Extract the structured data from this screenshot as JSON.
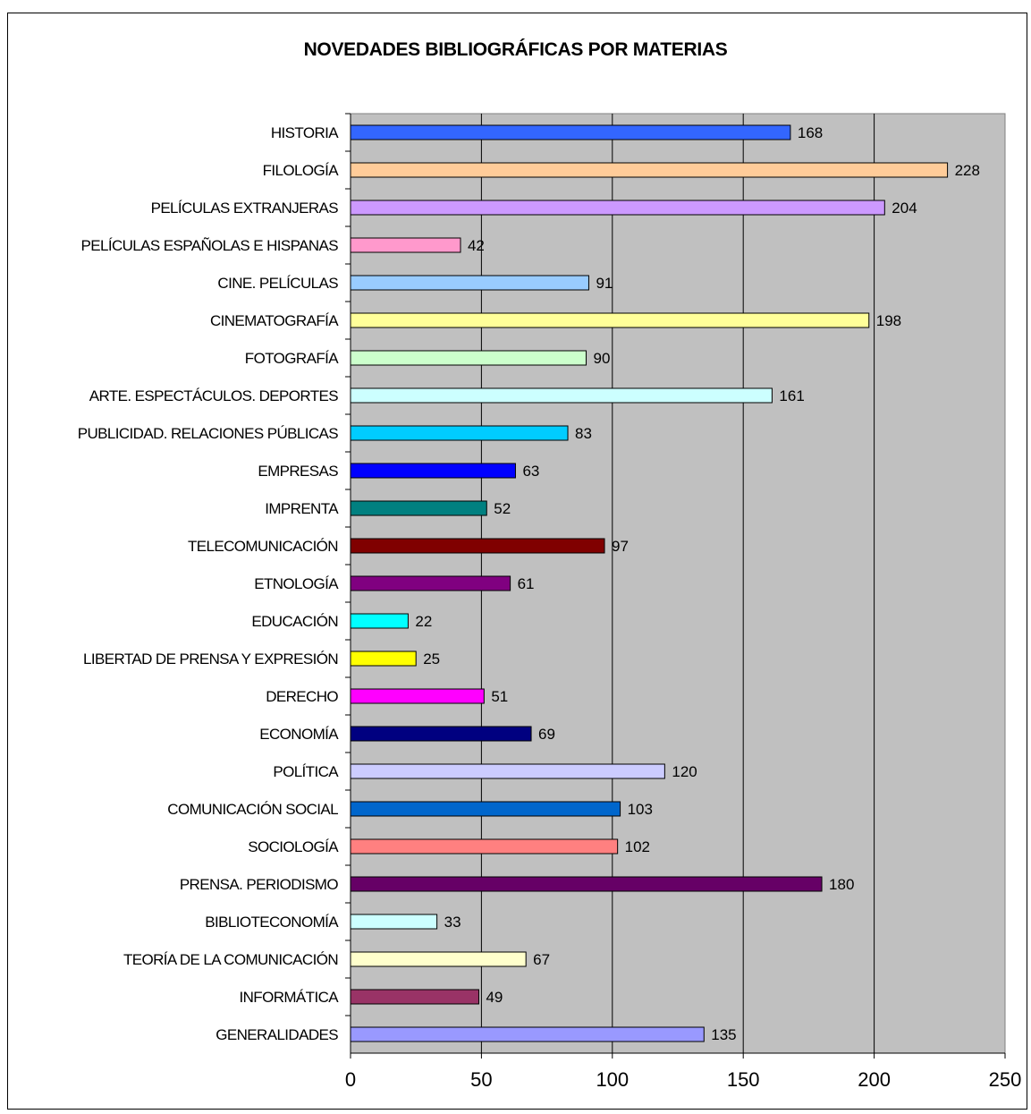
{
  "chart_data": {
    "type": "bar",
    "orientation": "horizontal",
    "title": "NOVEDADES BIBLIOGRÁFICAS POR MATERIAS",
    "xlabel": "",
    "ylabel": "",
    "xlim": [
      0,
      250
    ],
    "xticks": [
      0,
      50,
      100,
      150,
      200,
      250
    ],
    "grid": true,
    "legend": "none",
    "plot_background": "#C0C0C0",
    "categories": [
      "HISTORIA",
      "FILOLOGÍA",
      "PELÍCULAS EXTRANJERAS",
      "PELÍCULAS ESPAÑOLAS E HISPANAS",
      "CINE. PELÍCULAS",
      "CINEMATOGRAFÍA",
      "FOTOGRAFÍA",
      "ARTE. ESPECTÁCULOS. DEPORTES",
      "PUBLICIDAD. RELACIONES PÚBLICAS",
      "EMPRESAS",
      "IMPRENTA",
      "TELECOMUNICACIÓN",
      "ETNOLOGÍA",
      "EDUCACIÓN",
      "LIBERTAD DE PRENSA Y EXPRESIÓN",
      "DERECHO",
      "ECONOMÍA",
      "POLÍTICA",
      "COMUNICACIÓN SOCIAL",
      "SOCIOLOGÍA",
      "PRENSA. PERIODISMO",
      "BIBLIOTECONOMÍA",
      "TEORÍA DE LA COMUNICACIÓN",
      "INFORMÁTICA",
      "GENERALIDADES"
    ],
    "values": [
      168,
      228,
      204,
      42,
      91,
      198,
      90,
      161,
      83,
      63,
      52,
      97,
      61,
      22,
      25,
      51,
      69,
      120,
      103,
      102,
      180,
      33,
      67,
      49,
      135
    ],
    "colors": [
      "#3366FF",
      "#FFCC99",
      "#CC99FF",
      "#FF99CC",
      "#99CCFF",
      "#FFFF99",
      "#CCFFCC",
      "#CCFFFF",
      "#00CCFF",
      "#0000FF",
      "#008080",
      "#800000",
      "#800080",
      "#00FFFF",
      "#FFFF00",
      "#FF00FF",
      "#000080",
      "#CCCCFF",
      "#0066CC",
      "#FF8080",
      "#660066",
      "#CCFFFF",
      "#FFFFCC",
      "#993366",
      "#9999FF"
    ]
  }
}
